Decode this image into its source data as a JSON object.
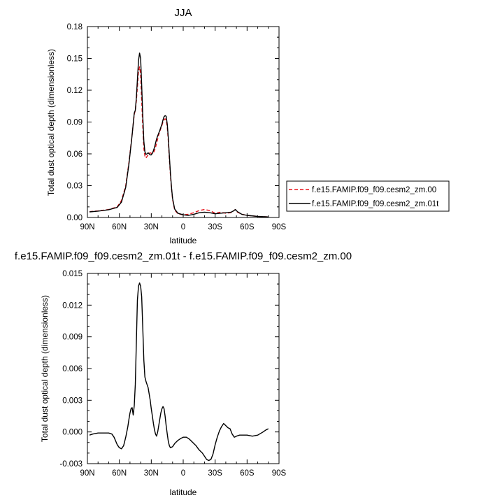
{
  "chart_data": [
    {
      "type": "line",
      "title": "JJA",
      "xlabel": "latitude",
      "ylabel": "Total dust optical depth (dimensionless)",
      "x_direction": "north-to-south",
      "xlim": [
        90,
        -90
      ],
      "ylim": [
        0,
        0.18
      ],
      "yticks": [
        "0.00",
        "0.03",
        "0.06",
        "0.09",
        "0.12",
        "0.15",
        "0.18"
      ],
      "xticks": [
        "90N",
        "60N",
        "30N",
        "0",
        "30S",
        "60S",
        "90S"
      ],
      "grid": false,
      "legend_position": "right",
      "series": [
        {
          "name": "f.e15.FAMIP.f09_f09.cesm2_zm.00",
          "color": "#e8141c",
          "dash": "dashed",
          "x": [
            88,
            80,
            70,
            62,
            58,
            54,
            51,
            48,
            46,
            45,
            44,
            43,
            42,
            41,
            40,
            39,
            38,
            37,
            36,
            35,
            34,
            33,
            32,
            31,
            30,
            29,
            28,
            27,
            26,
            25,
            24,
            23,
            22,
            21,
            20,
            19,
            18,
            17,
            16,
            15,
            14,
            13,
            12,
            11,
            10,
            8,
            5,
            0,
            -5,
            -10,
            -15,
            -20,
            -25,
            -30,
            -35,
            -40,
            -45,
            -47,
            -49,
            -51,
            -55,
            -60,
            -70,
            -80
          ],
          "y": [
            0.0055,
            0.0062,
            0.0075,
            0.01,
            0.016,
            0.03,
            0.052,
            0.078,
            0.097,
            0.101,
            0.11,
            0.123,
            0.138,
            0.142,
            0.135,
            0.11,
            0.085,
            0.065,
            0.058,
            0.056,
            0.0575,
            0.059,
            0.0605,
            0.061,
            0.0605,
            0.06,
            0.061,
            0.063,
            0.066,
            0.07,
            0.074,
            0.078,
            0.081,
            0.084,
            0.087,
            0.09,
            0.092,
            0.093,
            0.092,
            0.085,
            0.072,
            0.055,
            0.04,
            0.027,
            0.017,
            0.007,
            0.0035,
            0.0025,
            0.003,
            0.0045,
            0.0065,
            0.0075,
            0.0065,
            0.004,
            0.005,
            0.004,
            0.0045,
            0.006,
            0.0075,
            0.005,
            0.003,
            0.002,
            0.001,
            0.0005
          ]
        },
        {
          "name": "f.e15.FAMIP.f09_f09.cesm2_zm.01t",
          "color": "#000000",
          "dash": "solid",
          "x": [
            88,
            80,
            70,
            62,
            58,
            54,
            51,
            48,
            46,
            45,
            44,
            43,
            42,
            41,
            40,
            39,
            38,
            37,
            36,
            35,
            34,
            33,
            32,
            31,
            30,
            29,
            28,
            27,
            26,
            25,
            24,
            23,
            22,
            21,
            20,
            19,
            18,
            17,
            16,
            15,
            14,
            13,
            12,
            11,
            10,
            8,
            5,
            0,
            -5,
            -10,
            -15,
            -20,
            -25,
            -30,
            -35,
            -40,
            -45,
            -47,
            -49,
            -51,
            -55,
            -60,
            -70,
            -80
          ],
          "y": [
            0.0053,
            0.006,
            0.0073,
            0.0095,
            0.0145,
            0.0285,
            0.0505,
            0.0775,
            0.0985,
            0.101,
            0.113,
            0.13,
            0.148,
            0.155,
            0.15,
            0.125,
            0.095,
            0.072,
            0.062,
            0.0595,
            0.06,
            0.061,
            0.06,
            0.059,
            0.059,
            0.0605,
            0.063,
            0.066,
            0.07,
            0.074,
            0.077,
            0.0795,
            0.082,
            0.085,
            0.088,
            0.092,
            0.095,
            0.096,
            0.0955,
            0.088,
            0.075,
            0.058,
            0.042,
            0.028,
            0.018,
            0.008,
            0.004,
            0.0025,
            0.002,
            0.003,
            0.0045,
            0.005,
            0.0045,
            0.0035,
            0.004,
            0.0045,
            0.005,
            0.006,
            0.0075,
            0.0055,
            0.003,
            0.002,
            0.001,
            0.0005
          ]
        }
      ]
    },
    {
      "type": "line",
      "title": "f.e15.FAMIP.f09_f09.cesm2_zm.01t - f.e15.FAMIP.f09_f09.cesm2_zm.00",
      "xlabel": "latitude",
      "ylabel": "Total dust optical depth (dimensionless)",
      "x_direction": "north-to-south",
      "xlim": [
        90,
        -90
      ],
      "ylim": [
        -0.003,
        0.015
      ],
      "yticks": [
        "-0.003",
        "0.000",
        "0.003",
        "0.006",
        "0.009",
        "0.012",
        "0.015"
      ],
      "xticks": [
        "90N",
        "60N",
        "30N",
        "0",
        "30S",
        "60S",
        "90S"
      ],
      "grid": false,
      "series": [
        {
          "color": "#000000",
          "dash": "solid",
          "x": [
            88,
            85,
            80,
            75,
            70,
            67,
            65,
            62,
            60,
            58,
            56,
            55,
            54,
            53,
            52,
            51,
            50,
            49,
            48,
            47,
            46,
            45,
            44,
            43,
            42,
            41,
            40,
            39,
            38,
            37,
            36,
            35,
            34,
            33,
            32,
            31,
            30,
            29,
            28,
            27,
            26,
            25,
            24,
            23,
            22,
            21,
            20,
            19,
            18,
            17,
            16,
            15,
            14,
            13,
            12,
            10,
            8,
            5,
            2,
            0,
            -3,
            -6,
            -9,
            -12,
            -15,
            -18,
            -20,
            -22,
            -24,
            -26,
            -28,
            -30,
            -32,
            -34,
            -36,
            -38,
            -40,
            -42,
            -44,
            -46,
            -48,
            -50,
            -53,
            -56,
            -60,
            -65,
            -70,
            -75,
            -78,
            -80
          ],
          "y": [
            -0.0003,
            -0.0002,
            -0.0001,
            -0.0001,
            -0.0001,
            -0.0002,
            -0.0005,
            -0.0012,
            -0.0015,
            -0.0016,
            -0.0013,
            -0.0009,
            -0.0005,
            0.0,
            0.0005,
            0.0012,
            0.0018,
            0.0022,
            0.0023,
            0.0016,
            0.0025,
            0.0045,
            0.0085,
            0.0125,
            0.0138,
            0.0141,
            0.0138,
            0.0128,
            0.0098,
            0.0068,
            0.0052,
            0.0048,
            0.0045,
            0.0042,
            0.0036,
            0.003,
            0.0022,
            0.0015,
            0.0008,
            0.0002,
            -0.0002,
            -0.0004,
            0.0,
            0.0006,
            0.0012,
            0.0018,
            0.0022,
            0.0024,
            0.0022,
            0.0015,
            0.0006,
            -0.0002,
            -0.0009,
            -0.0013,
            -0.0015,
            -0.0014,
            -0.0011,
            -0.0008,
            -0.0006,
            -0.0005,
            -0.0005,
            -0.0007,
            -0.001,
            -0.0013,
            -0.0017,
            -0.002,
            -0.0023,
            -0.0026,
            -0.0027,
            -0.0026,
            -0.0021,
            -0.0012,
            -0.0005,
            0.0001,
            0.0005,
            0.0008,
            0.0006,
            0.0004,
            0.0003,
            -0.0002,
            -0.0005,
            -0.0004,
            -0.0003,
            -0.0003,
            -0.0003,
            -0.0004,
            -0.0003,
            0.0,
            0.0002,
            0.0003
          ]
        }
      ]
    }
  ]
}
